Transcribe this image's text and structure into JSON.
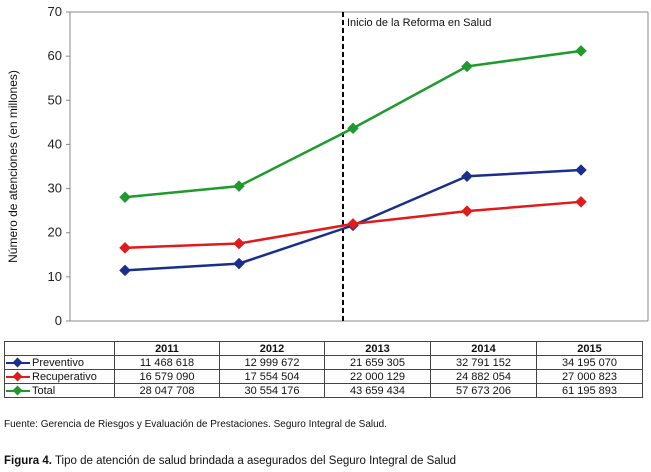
{
  "chart_data": {
    "type": "line",
    "categories": [
      "2011",
      "2012",
      "2013",
      "2014",
      "2015"
    ],
    "ylabel": "Número de atenciones (en millones)",
    "ylim": [
      0,
      70
    ],
    "yticks": [
      "0",
      "10",
      "20",
      "30",
      "40",
      "50",
      "60",
      "70"
    ],
    "grid": false,
    "annotation": {
      "label": "Inicio de la Reforma en Salud",
      "at": "2013"
    },
    "series": [
      {
        "name": "Preventivo",
        "color": "#1a2f8c",
        "values": [
          11.468618,
          12.999672,
          21.659305,
          32.791152,
          34.19507
        ],
        "labels": [
          "11 468 618",
          "12 999 672",
          "21 659 305",
          "32 791 152",
          "34 195 070"
        ]
      },
      {
        "name": "Recuperativo",
        "color": "#e01b1b",
        "values": [
          16.57909,
          17.554504,
          22.000129,
          24.882054,
          27.000823
        ],
        "labels": [
          "16 579 090",
          "17 554 504",
          "22 000 129",
          "24 882 054",
          "27 000 823"
        ]
      },
      {
        "name": "Total",
        "color": "#1f9a2e",
        "values": [
          28.047708,
          30.554176,
          43.659434,
          57.673206,
          61.195893
        ],
        "labels": [
          "28 047 708",
          "30 554 176",
          "43 659 434",
          "57 673 206",
          "61 195 893"
        ]
      }
    ]
  },
  "source": "Fuente: Gerencia de Riesgos y Evaluación de Prestaciones. Seguro Integral de Salud.",
  "caption": {
    "prefix": "Figura 4.",
    "text": "Tipo de atención de salud brindada a asegurados del Seguro Integral de Salud"
  }
}
